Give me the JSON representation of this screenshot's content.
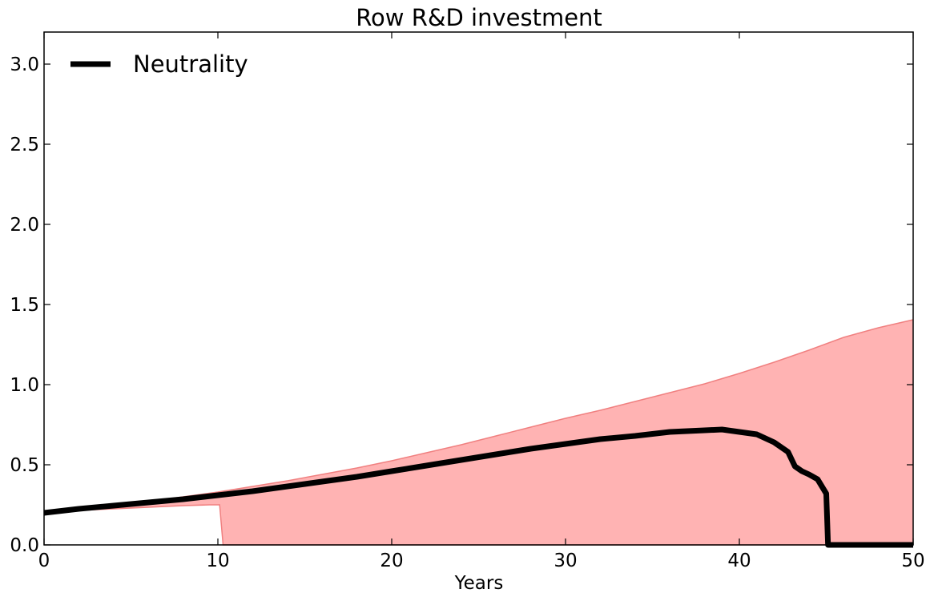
{
  "chart_data": {
    "type": "line",
    "title": "Row R&D investment",
    "xlabel": "Years",
    "ylabel": "",
    "xlim": [
      0,
      50
    ],
    "ylim": [
      0,
      3.2
    ],
    "xticks": [
      0,
      10,
      20,
      30,
      40,
      50
    ],
    "xtick_labels": [
      "0",
      "10",
      "20",
      "30",
      "40",
      "50"
    ],
    "yticks": [
      0,
      0.5,
      1.0,
      1.5,
      2.0,
      2.5,
      3.0
    ],
    "ytick_labels": [
      "0.0",
      "0.5",
      "1.0",
      "1.5",
      "2.0",
      "2.5",
      "3.0"
    ],
    "grid": false,
    "legend_position": "top-left",
    "series": [
      {
        "name": "Neutrality",
        "color": "#000000",
        "x": [
          0,
          2,
          4,
          6,
          8,
          10,
          12,
          14,
          16,
          18,
          20,
          22,
          24,
          26,
          28,
          30,
          32,
          34,
          36,
          38,
          39,
          40,
          41,
          42,
          42.8,
          43.2,
          43.6,
          44,
          44.5,
          45,
          45.1,
          46,
          48,
          50
        ],
        "y": [
          0.2,
          0.225,
          0.245,
          0.265,
          0.285,
          0.31,
          0.335,
          0.365,
          0.395,
          0.425,
          0.46,
          0.495,
          0.53,
          0.565,
          0.6,
          0.63,
          0.66,
          0.68,
          0.705,
          0.715,
          0.72,
          0.705,
          0.69,
          0.64,
          0.58,
          0.49,
          0.46,
          0.44,
          0.41,
          0.32,
          0.0,
          0.0,
          0.0,
          0.0
        ]
      }
    ],
    "band": {
      "color": "#ffb3b3",
      "edge_color": "#f08080",
      "upper": {
        "x": [
          0,
          2,
          4,
          6,
          8,
          10,
          12,
          14,
          16,
          18,
          20,
          22,
          24,
          26,
          28,
          30,
          32,
          34,
          36,
          38,
          40,
          42,
          44,
          46,
          48,
          50
        ],
        "y": [
          0.2,
          0.225,
          0.25,
          0.27,
          0.3,
          0.33,
          0.365,
          0.4,
          0.44,
          0.48,
          0.525,
          0.575,
          0.625,
          0.68,
          0.735,
          0.79,
          0.84,
          0.895,
          0.95,
          1.005,
          1.07,
          1.14,
          1.215,
          1.295,
          1.355,
          1.405
        ]
      },
      "lower": {
        "x": [
          0,
          2,
          4,
          6,
          8,
          9.5,
          10.1,
          10.3,
          12,
          20,
          30,
          40,
          50
        ],
        "y": [
          0.2,
          0.215,
          0.225,
          0.235,
          0.245,
          0.25,
          0.25,
          0.0,
          0.0,
          0.0,
          0.0,
          0.0,
          0.0
        ]
      }
    }
  }
}
